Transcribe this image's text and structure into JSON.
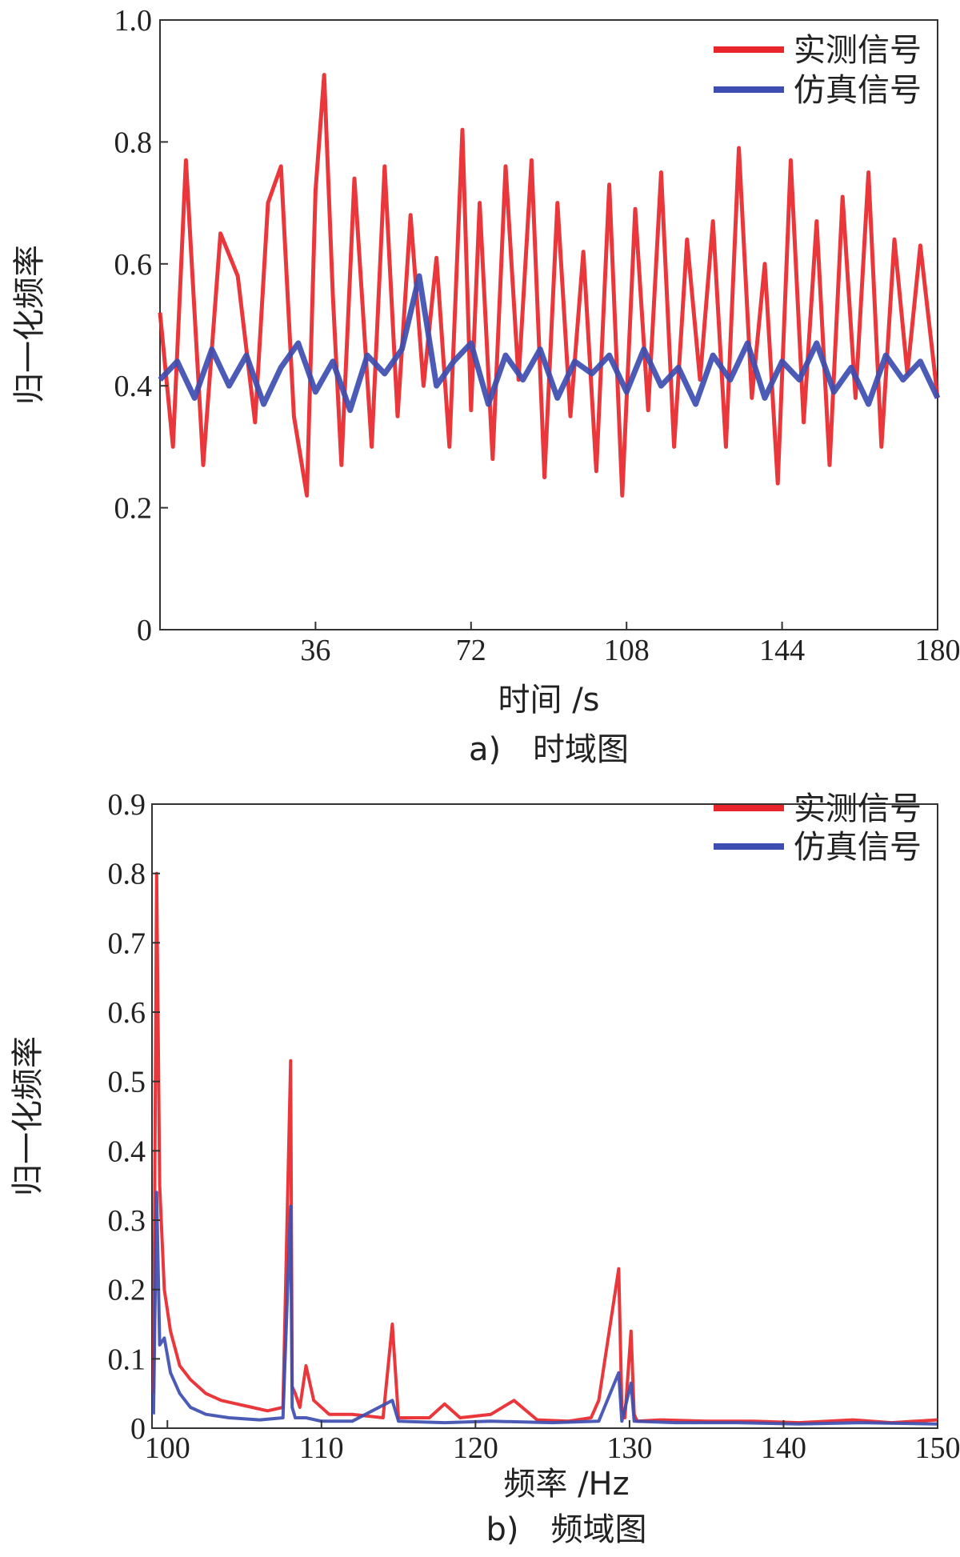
{
  "chart_data": [
    {
      "type": "line",
      "caption": "a)　时域图",
      "xlabel": "时间 /s",
      "ylabel": "归一化频率",
      "xlim": [
        0,
        180
      ],
      "ylim": [
        0,
        1.0
      ],
      "xticks": [
        36,
        72,
        108,
        144,
        180
      ],
      "xtick_labels": [
        "36",
        "72",
        "108",
        "144",
        "180"
      ],
      "yticks": [
        0,
        0.2,
        0.4,
        0.6,
        0.8,
        1.0
      ],
      "ytick_labels": [
        "0",
        "0.2",
        "0.4",
        "0.6",
        "0.8",
        "1.0"
      ],
      "legend_position": "top-right",
      "series": [
        {
          "name": "实测信号",
          "color": "#e8262a",
          "x": [
            0,
            3,
            6,
            10,
            14,
            18,
            22,
            25,
            28,
            31,
            34,
            36,
            38,
            40,
            42,
            45,
            49,
            52,
            55,
            58,
            61,
            64,
            67,
            70,
            72,
            74,
            77,
            80,
            83,
            86,
            89,
            92,
            95,
            98,
            101,
            104,
            107,
            110,
            113,
            116,
            119,
            122,
            125,
            128,
            131,
            134,
            137,
            140,
            143,
            146,
            149,
            152,
            155,
            158,
            161,
            164,
            167,
            170,
            173,
            176,
            180
          ],
          "values": [
            0.52,
            0.3,
            0.77,
            0.27,
            0.65,
            0.58,
            0.34,
            0.7,
            0.76,
            0.35,
            0.22,
            0.72,
            0.91,
            0.55,
            0.27,
            0.74,
            0.3,
            0.76,
            0.35,
            0.68,
            0.4,
            0.61,
            0.3,
            0.82,
            0.36,
            0.7,
            0.28,
            0.76,
            0.41,
            0.77,
            0.25,
            0.7,
            0.35,
            0.62,
            0.26,
            0.73,
            0.22,
            0.69,
            0.36,
            0.75,
            0.3,
            0.64,
            0.41,
            0.67,
            0.3,
            0.79,
            0.38,
            0.6,
            0.24,
            0.77,
            0.34,
            0.67,
            0.27,
            0.71,
            0.38,
            0.75,
            0.3,
            0.64,
            0.42,
            0.63,
            0.38
          ]
        },
        {
          "name": "仿真信号",
          "color": "#3d4eb0",
          "x": [
            0,
            4,
            8,
            12,
            16,
            20,
            24,
            28,
            32,
            36,
            40,
            44,
            48,
            52,
            56,
            60,
            64,
            68,
            72,
            76,
            80,
            84,
            88,
            92,
            96,
            100,
            104,
            108,
            112,
            116,
            120,
            124,
            128,
            132,
            136,
            140,
            144,
            148,
            152,
            156,
            160,
            164,
            168,
            172,
            176,
            180
          ],
          "values": [
            0.41,
            0.44,
            0.38,
            0.46,
            0.4,
            0.45,
            0.37,
            0.43,
            0.47,
            0.39,
            0.44,
            0.36,
            0.45,
            0.42,
            0.46,
            0.58,
            0.4,
            0.44,
            0.47,
            0.37,
            0.45,
            0.41,
            0.46,
            0.38,
            0.44,
            0.42,
            0.45,
            0.39,
            0.46,
            0.4,
            0.43,
            0.37,
            0.45,
            0.41,
            0.47,
            0.38,
            0.44,
            0.41,
            0.47,
            0.39,
            0.43,
            0.37,
            0.45,
            0.41,
            0.44,
            0.38
          ]
        }
      ]
    },
    {
      "type": "line",
      "caption": "b)　频域图",
      "xlabel": "频率 /Hz",
      "ylabel": "归一化频率",
      "xlim": [
        99,
        150
      ],
      "ylim": [
        0,
        0.9
      ],
      "xticks": [
        100,
        110,
        120,
        130,
        140,
        150
      ],
      "xtick_labels": [
        "100",
        "110",
        "120",
        "130",
        "140",
        "150"
      ],
      "yticks": [
        0,
        0.1,
        0.2,
        0.3,
        0.4,
        0.5,
        0.6,
        0.7,
        0.8,
        0.9
      ],
      "ytick_labels": [
        "0",
        "0.1",
        "0.2",
        "0.3",
        "0.4",
        "0.5",
        "0.6",
        "0.7",
        "0.8",
        "0.9"
      ],
      "legend_position": "top-right",
      "series": [
        {
          "name": "实测信号",
          "color": "#e8262a",
          "x": [
            99.1,
            99.3,
            99.5,
            99.8,
            100.2,
            100.8,
            101.5,
            102.5,
            103.5,
            104.5,
            105.5,
            106.5,
            107.5,
            108.0,
            108.1,
            108.3,
            108.6,
            109.0,
            109.5,
            110.5,
            112,
            114,
            114.6,
            115,
            117,
            118,
            119,
            121,
            122.5,
            124,
            126,
            127.5,
            128,
            129.3,
            129.5,
            129.7,
            130.1,
            130.3,
            130.5,
            132,
            135,
            138,
            141,
            144.5,
            147,
            150
          ],
          "values": [
            0.05,
            0.8,
            0.35,
            0.2,
            0.14,
            0.09,
            0.07,
            0.05,
            0.04,
            0.035,
            0.03,
            0.025,
            0.03,
            0.53,
            0.06,
            0.05,
            0.03,
            0.09,
            0.04,
            0.02,
            0.02,
            0.015,
            0.15,
            0.015,
            0.015,
            0.035,
            0.015,
            0.02,
            0.04,
            0.012,
            0.01,
            0.015,
            0.04,
            0.23,
            0.03,
            0.015,
            0.14,
            0.02,
            0.01,
            0.012,
            0.01,
            0.01,
            0.008,
            0.012,
            0.008,
            0.012
          ]
        },
        {
          "name": "仿真信号",
          "color": "#3d4eb0",
          "x": [
            99.1,
            99.3,
            99.5,
            99.8,
            100.2,
            100.8,
            101.5,
            102.5,
            104,
            106,
            107.5,
            108.0,
            108.1,
            108.3,
            109,
            110,
            112,
            114.6,
            115,
            118,
            121,
            125,
            128,
            129.3,
            129.5,
            130.1,
            130.3,
            133,
            137,
            141,
            145,
            150
          ],
          "values": [
            0.02,
            0.34,
            0.12,
            0.13,
            0.08,
            0.05,
            0.03,
            0.02,
            0.015,
            0.012,
            0.015,
            0.32,
            0.03,
            0.015,
            0.015,
            0.01,
            0.01,
            0.04,
            0.01,
            0.008,
            0.01,
            0.008,
            0.01,
            0.08,
            0.01,
            0.065,
            0.01,
            0.008,
            0.008,
            0.006,
            0.008,
            0.006
          ]
        }
      ]
    }
  ]
}
